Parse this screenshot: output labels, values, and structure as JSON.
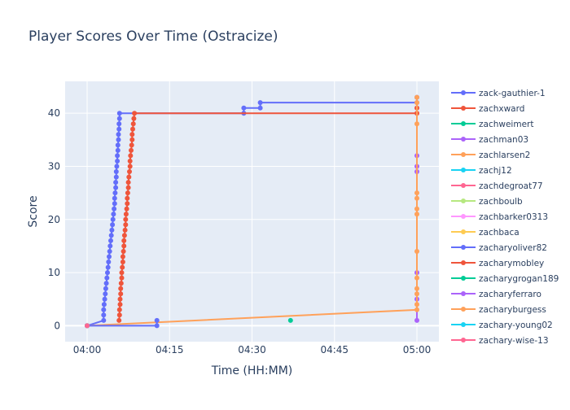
{
  "chart_data": {
    "type": "line",
    "title": "Player Scores Over Time (Ostracize)",
    "xlabel": "Time (HH:MM)",
    "ylabel": "Score",
    "x_unit": "minutes since 04:00",
    "xlim": [
      -4,
      64
    ],
    "ylim": [
      -3,
      46
    ],
    "x_ticks": [
      {
        "v": 0,
        "label": "04:00"
      },
      {
        "v": 15,
        "label": "04:15"
      },
      {
        "v": 30,
        "label": "04:30"
      },
      {
        "v": 45,
        "label": "04:45"
      },
      {
        "v": 60,
        "label": "05:00"
      }
    ],
    "y_ticks": [
      0,
      10,
      20,
      30,
      40
    ],
    "grid": true,
    "legend_position": "right",
    "series": [
      {
        "name": "zack-gauthier-1",
        "color": "#636efa",
        "points": [
          [
            0,
            0
          ],
          [
            3,
            1
          ],
          [
            3,
            2
          ],
          [
            3,
            3
          ],
          [
            3.1,
            4
          ],
          [
            3.2,
            5
          ],
          [
            3.3,
            6
          ],
          [
            3.4,
            7
          ],
          [
            3.5,
            8
          ],
          [
            3.6,
            9
          ],
          [
            3.7,
            10
          ],
          [
            3.8,
            11
          ],
          [
            3.9,
            12
          ],
          [
            4.0,
            13
          ],
          [
            4.1,
            14
          ],
          [
            4.2,
            15
          ],
          [
            4.3,
            16
          ],
          [
            4.4,
            17
          ],
          [
            4.5,
            18
          ],
          [
            4.6,
            19
          ],
          [
            4.7,
            20
          ],
          [
            4.8,
            21
          ],
          [
            4.9,
            22
          ],
          [
            5.0,
            23
          ],
          [
            5.0,
            24
          ],
          [
            5.1,
            25
          ],
          [
            5.2,
            26
          ],
          [
            5.2,
            27
          ],
          [
            5.3,
            28
          ],
          [
            5.3,
            29
          ],
          [
            5.4,
            30
          ],
          [
            5.5,
            31
          ],
          [
            5.5,
            32
          ],
          [
            5.6,
            33
          ],
          [
            5.6,
            34
          ],
          [
            5.7,
            35
          ],
          [
            5.7,
            36
          ],
          [
            5.8,
            37
          ],
          [
            5.8,
            38
          ],
          [
            5.9,
            39
          ],
          [
            5.9,
            40
          ],
          [
            28.5,
            40
          ],
          [
            28.5,
            41
          ],
          [
            31.5,
            41
          ],
          [
            31.5,
            42
          ],
          [
            60,
            42
          ],
          [
            60,
            43
          ]
        ]
      },
      {
        "name": "zachxward",
        "color": "#ef553b",
        "points": [
          [
            5.8,
            1
          ],
          [
            5.9,
            2
          ],
          [
            5.9,
            3
          ],
          [
            6.0,
            4
          ],
          [
            6.0,
            5
          ],
          [
            6.1,
            6
          ],
          [
            6.1,
            7
          ],
          [
            6.2,
            8
          ],
          [
            6.3,
            9
          ],
          [
            6.3,
            10
          ],
          [
            6.4,
            11
          ],
          [
            6.5,
            12
          ],
          [
            6.5,
            13
          ],
          [
            6.6,
            14
          ],
          [
            6.7,
            15
          ],
          [
            6.7,
            16
          ],
          [
            6.8,
            17
          ],
          [
            6.9,
            18
          ],
          [
            7.0,
            19
          ],
          [
            7.0,
            20
          ],
          [
            7.1,
            21
          ],
          [
            7.2,
            22
          ],
          [
            7.3,
            23
          ],
          [
            7.3,
            24
          ],
          [
            7.4,
            25
          ],
          [
            7.5,
            26
          ],
          [
            7.5,
            27
          ],
          [
            7.6,
            28
          ],
          [
            7.7,
            29
          ],
          [
            7.8,
            30
          ],
          [
            7.8,
            31
          ],
          [
            7.9,
            32
          ],
          [
            8.0,
            33
          ],
          [
            8.1,
            34
          ],
          [
            8.2,
            35
          ],
          [
            8.2,
            36
          ],
          [
            8.3,
            37
          ],
          [
            8.4,
            38
          ],
          [
            8.5,
            39
          ],
          [
            8.6,
            40
          ],
          [
            60,
            40
          ],
          [
            60,
            41
          ]
        ]
      },
      {
        "name": "zachweimert",
        "color": "#00cc96",
        "points": [
          [
            37,
            1
          ]
        ]
      },
      {
        "name": "zachman03",
        "color": "#ab63fa",
        "points": [
          [
            60,
            1
          ],
          [
            60,
            5
          ],
          [
            60,
            10
          ],
          [
            60,
            29
          ],
          [
            60,
            30
          ],
          [
            60,
            32
          ]
        ]
      },
      {
        "name": "zachlarsen2",
        "color": "#ffa15a",
        "points": [
          [
            0,
            0
          ],
          [
            60,
            3
          ],
          [
            60,
            4
          ],
          [
            60,
            6
          ],
          [
            60,
            7
          ],
          [
            60,
            9
          ],
          [
            60,
            14
          ],
          [
            60,
            21
          ],
          [
            60,
            22
          ],
          [
            60,
            24
          ],
          [
            60,
            25
          ],
          [
            60,
            38
          ],
          [
            60,
            42
          ],
          [
            60,
            43
          ]
        ]
      },
      {
        "name": "zachj12",
        "color": "#19d3f3",
        "points": [
          [
            0,
            0
          ]
        ]
      },
      {
        "name": "zachdegroat77",
        "color": "#ff6692",
        "points": [
          [
            0,
            0
          ]
        ]
      },
      {
        "name": "zachboulb",
        "color": "#b6e880",
        "points": [
          [
            0,
            0
          ]
        ]
      },
      {
        "name": "zachbarker0313",
        "color": "#ff97ff",
        "points": [
          [
            0,
            0
          ]
        ]
      },
      {
        "name": "zachbaca",
        "color": "#fecb52",
        "points": [
          [
            0,
            0
          ]
        ]
      },
      {
        "name": "zacharyoliver82",
        "color": "#636efa",
        "points": [
          [
            0,
            0
          ],
          [
            12.7,
            0
          ],
          [
            12.7,
            1
          ]
        ]
      },
      {
        "name": "zacharymobley",
        "color": "#ef553b",
        "points": [
          [
            0,
            0
          ]
        ]
      },
      {
        "name": "zacharygrogan189",
        "color": "#00cc96",
        "points": [
          [
            0,
            0
          ]
        ]
      },
      {
        "name": "zacharyferraro",
        "color": "#ab63fa",
        "points": [
          [
            0,
            0
          ]
        ]
      },
      {
        "name": "zacharyburgess",
        "color": "#ffa15a",
        "points": [
          [
            0,
            0
          ]
        ]
      },
      {
        "name": "zachary-young02",
        "color": "#19d3f3",
        "points": [
          [
            0,
            0
          ]
        ]
      },
      {
        "name": "zachary-wise-13",
        "color": "#ff6692",
        "points": [
          [
            0,
            0
          ]
        ]
      }
    ]
  }
}
